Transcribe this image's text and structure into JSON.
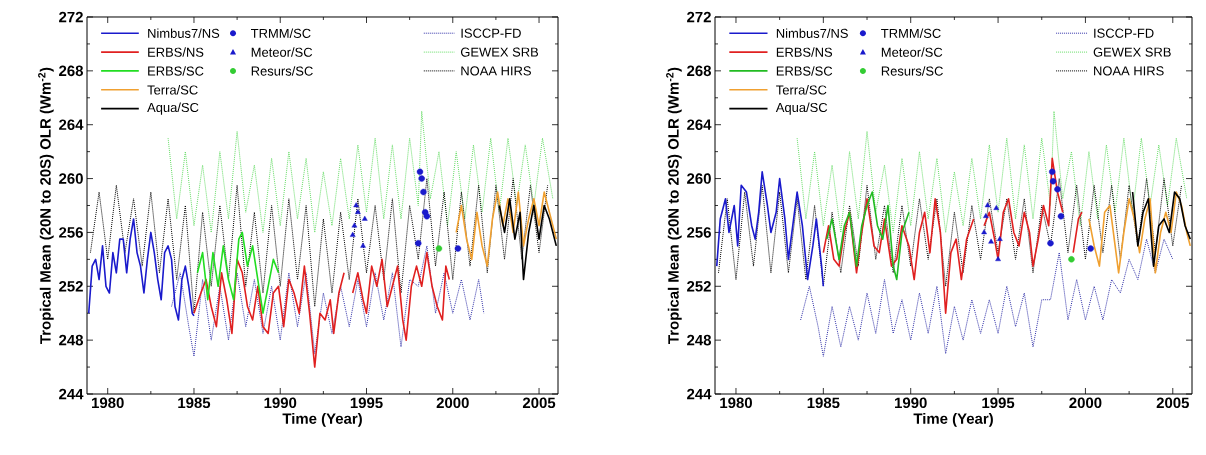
{
  "chart_data": [
    {
      "type": "line",
      "xlabel": "Time (Year)",
      "ylabel": "Tropical Mean (20N to 20S) OLR (Wm$^{-2}$)",
      "xlim": [
        1978.8,
        2006.1
      ],
      "ylim": [
        244,
        272
      ],
      "xticks": [
        1980,
        1985,
        1990,
        1995,
        2000,
        2005
      ],
      "yticks": [
        244,
        248,
        252,
        256,
        260,
        264,
        268,
        272
      ],
      "legend": "top",
      "series": [
        {
          "name": "Nimbus7/NS",
          "color": "#1a1acc",
          "line_style": "solid",
          "x": [
            1978.9,
            1979.1,
            1979.3,
            1979.5,
            1979.7,
            1979.9,
            1980.1,
            1980.3,
            1980.5,
            1980.7,
            1980.9,
            1981.1,
            1981.3,
            1981.5,
            1981.7,
            1981.9,
            1982.1,
            1982.3,
            1982.5,
            1982.7,
            1982.9,
            1983.1,
            1983.3,
            1983.5,
            1983.7,
            1983.9,
            1984.1,
            1984.3,
            1984.5,
            1984.7,
            1984.9,
            1985.0
          ],
          "values": [
            250.0,
            253.5,
            254.0,
            252.5,
            255.0,
            252.0,
            251.5,
            254.5,
            253.0,
            255.5,
            255.5,
            253.0,
            255.5,
            257.0,
            254.5,
            253.5,
            251.5,
            254.0,
            256.0,
            254.5,
            252.5,
            251.0,
            254.5,
            255.0,
            254.0,
            250.5,
            249.5,
            252.5,
            253.5,
            252.0,
            250.0,
            249.8
          ]
        },
        {
          "name": "ERBS/NS",
          "color": "#e02020",
          "line_style": "solid",
          "x": [
            1985.0,
            1985.4,
            1985.7,
            1986.0,
            1986.3,
            1986.6,
            1986.9,
            1987.2,
            1987.5,
            1987.8,
            1988.1,
            1988.4,
            1988.7,
            1989.0,
            1989.3,
            1989.6,
            1989.9,
            1990.2,
            1990.5,
            1990.8,
            1991.1,
            1991.4,
            1991.7,
            1992.0,
            1992.3,
            1992.6,
            1992.9,
            1993.1,
            1993.4,
            1993.7,
            1993.9,
            1994.2,
            1994.5,
            1994.8,
            1995.0,
            1995.3,
            1995.6,
            1995.9,
            1996.2,
            1996.5,
            1996.8,
            1997.1,
            1997.3,
            1997.6,
            1997.9,
            1998.2,
            1998.5,
            1998.8,
            1999.1,
            1999.4,
            1999.6,
            1999.8
          ],
          "values": [
            250.0,
            251.5,
            252.5,
            250.5,
            249.0,
            253.0,
            251.0,
            248.5,
            254.0,
            253.0,
            250.5,
            249.5,
            252.0,
            249.0,
            248.5,
            251.5,
            252.0,
            249.0,
            252.5,
            251.5,
            250.0,
            253.5,
            250.0,
            246.0,
            250.0,
            249.5,
            251.0,
            248.5,
            251.5,
            253.0,
            null,
            251.5,
            253.0,
            251.0,
            250.0,
            253.5,
            252.0,
            254.0,
            250.5,
            252.0,
            253.5,
            249.5,
            248.0,
            252.0,
            253.5,
            252.0,
            254.5,
            252.0,
            250.5,
            249.5,
            253.5,
            252.5
          ]
        },
        {
          "name": "ERBS/SC",
          "color": "#22dd22",
          "line_style": "solid",
          "x": [
            1985.2,
            1985.5,
            1985.8,
            1986.1,
            1986.4,
            1986.7,
            1987.0,
            1987.3,
            1987.6,
            1987.8,
            1988.1,
            1988.4,
            1988.7,
            1989.0,
            1989.3,
            1989.6,
            1989.9
          ],
          "values": [
            253.0,
            254.5,
            251.0,
            254.5,
            252.0,
            255.0,
            252.5,
            251.0,
            255.5,
            256.0,
            253.5,
            255.0,
            252.5,
            250.0,
            252.0,
            254.0,
            253.0
          ]
        },
        {
          "name": "Terra/SC",
          "color": "#f0a030",
          "line_style": "solid",
          "x": [
            2000.2,
            2000.5,
            2000.8,
            2001.1,
            2001.4,
            2001.7,
            2002.0,
            2002.3,
            2002.6,
            2002.9,
            2003.2,
            2003.5,
            2003.8,
            2004.1,
            2004.4,
            2004.7,
            2005.0,
            2005.3,
            2005.6,
            2005.9,
            2006.0
          ],
          "values": [
            256.0,
            258.0,
            255.5,
            254.0,
            257.5,
            255.0,
            253.5,
            257.0,
            259.0,
            256.5,
            258.5,
            256.0,
            259.0,
            255.0,
            257.0,
            258.5,
            256.5,
            259.0,
            257.5,
            256.0,
            255.5
          ]
        },
        {
          "name": "Aqua/SC",
          "color": "#000000",
          "line_style": "solid",
          "x": [
            2002.7,
            2003.0,
            2003.3,
            2003.6,
            2003.9,
            2004.1,
            2004.4,
            2004.7,
            2005.0,
            2005.3,
            2005.6,
            2005.9,
            2006.0
          ],
          "values": [
            258.0,
            256.0,
            258.5,
            255.5,
            257.5,
            252.5,
            256.0,
            258.0,
            255.5,
            258.0,
            257.0,
            255.5,
            255.0
          ]
        },
        {
          "name": "TRMM/SC",
          "type": "scatter",
          "marker": "circle",
          "color": "#1a1acc",
          "x": [
            1998.0,
            1998.1,
            1998.2,
            1998.3,
            1998.4,
            1998.5,
            2000.3
          ],
          "values": [
            255.2,
            260.5,
            260.0,
            259.0,
            257.5,
            257.2,
            254.8
          ]
        },
        {
          "name": "Meteor/SC",
          "type": "scatter",
          "marker": "triangle",
          "color": "#1a1acc",
          "x": [
            1994.2,
            1994.3,
            1994.4,
            1994.5,
            1994.8,
            1994.9
          ],
          "values": [
            255.8,
            256.5,
            258.0,
            257.5,
            255.0,
            257.0
          ]
        },
        {
          "name": "Resurs/SC",
          "type": "scatter",
          "marker": "circle",
          "color": "#33cc33",
          "x": [
            1999.2
          ],
          "values": [
            254.8
          ]
        },
        {
          "name": "ISCCP-FD",
          "color": "#3333aa",
          "line_style": "dotted",
          "x": [
            1983.7,
            1984.2,
            1984.7,
            1985.0,
            1985.5,
            1986.0,
            1986.5,
            1987.0,
            1987.5,
            1988.0,
            1988.5,
            1989.0,
            1989.5,
            1990.0,
            1990.5,
            1991.0,
            1991.5,
            1992.0,
            1992.5,
            1993.0,
            1993.5,
            1994.0,
            1994.5,
            1995.0,
            1995.5,
            1996.0,
            1996.5,
            1997.0,
            1997.5,
            1998.0,
            1998.5,
            1999.0,
            1999.5,
            2000.0,
            2000.5,
            2001.0,
            2001.5,
            2001.8
          ],
          "values": [
            250.5,
            253.0,
            249.0,
            246.8,
            252.5,
            248.0,
            252.0,
            248.0,
            253.0,
            249.0,
            252.5,
            248.5,
            252.0,
            248.0,
            253.0,
            249.0,
            253.0,
            247.0,
            251.5,
            248.5,
            252.0,
            249.0,
            252.5,
            249.0,
            253.0,
            249.5,
            253.0,
            247.5,
            252.5,
            252.0,
            255.0,
            250.0,
            253.0,
            250.0,
            252.5,
            249.5,
            252.5,
            250.0
          ]
        },
        {
          "name": "GEWEX SRB",
          "color": "#66dd66",
          "line_style": "dotted",
          "x": [
            1983.5,
            1984,
            1984.5,
            1985,
            1985.5,
            1986,
            1986.5,
            1987,
            1987.5,
            1988,
            1988.5,
            1989,
            1989.5,
            1990,
            1990.5,
            1991,
            1991.5,
            1992,
            1992.5,
            1993,
            1993.5,
            1994,
            1994.5,
            1995,
            1995.5,
            1996,
            1996.5,
            1997,
            1997.5,
            1998,
            1998.2,
            1998.7,
            1999.2,
            1999.7,
            2000.2,
            2000.7,
            2001.2,
            2001.7,
            2002.2,
            2002.7,
            2003.2,
            2003.7,
            2004.2,
            2004.7,
            2005.2,
            2005.8
          ],
          "values": [
            263.0,
            257.0,
            262.0,
            256.5,
            261.0,
            256.0,
            262.0,
            257.0,
            263.5,
            257.5,
            261.0,
            256.0,
            261.5,
            256.5,
            262.0,
            257.0,
            261.5,
            256.0,
            260.5,
            256.5,
            261.5,
            257.0,
            262.5,
            257.5,
            263.0,
            257.0,
            262.5,
            257.0,
            263.0,
            258.0,
            265.0,
            258.5,
            262.0,
            256.5,
            262.0,
            257.0,
            262.5,
            257.5,
            263.0,
            257.5,
            263.0,
            258.0,
            262.5,
            258.0,
            263.0,
            258.5
          ]
        },
        {
          "name": "NOAA HIRS",
          "color": "#000000",
          "line_style": "dotted",
          "x": [
            1979,
            1979.5,
            1980,
            1980.5,
            1981,
            1981.5,
            1982,
            1982.5,
            1983,
            1983.5,
            1984,
            1984.5,
            1985,
            1985.5,
            1986,
            1986.5,
            1987,
            1987.5,
            1988,
            1988.5,
            1989,
            1989.5,
            1990,
            1990.5,
            1991,
            1991.5,
            1992,
            1992.5,
            1993,
            1993.5,
            1994,
            1994.5,
            1995,
            1995.5,
            1996,
            1996.5,
            1997,
            1997.5,
            1998,
            1998.5,
            1999,
            1999.5,
            2000,
            2000.5,
            2001,
            2001.5,
            2002,
            2002.5,
            2003,
            2003.5,
            2004,
            2004.5,
            2005,
            2005.5
          ],
          "values": [
            254.5,
            259.0,
            254.0,
            259.5,
            254.5,
            258.5,
            253.5,
            259.0,
            253.0,
            258.5,
            252.5,
            258.0,
            250.0,
            257.5,
            252.0,
            258.0,
            252.5,
            259.5,
            252.0,
            257.5,
            251.5,
            258.0,
            252.0,
            258.5,
            252.5,
            258.0,
            250.5,
            257.0,
            251.5,
            257.5,
            252.5,
            258.5,
            253.0,
            258.0,
            252.5,
            258.5,
            251.5,
            258.0,
            254.0,
            260.0,
            253.5,
            259.0,
            252.5,
            259.0,
            253.5,
            259.5,
            253.0,
            259.5,
            254.0,
            260.0,
            254.0,
            259.5,
            254.5,
            259.5
          ]
        }
      ]
    },
    {
      "type": "line",
      "xlabel": "Time (Year)",
      "ylabel": "Tropical Mean (20N to 20S) OLR (Wm$^{-2}$)",
      "xlim": [
        1978.8,
        2006.1
      ],
      "ylim": [
        244,
        272
      ],
      "xticks": [
        1980,
        1985,
        1990,
        1995,
        2000,
        2005
      ],
      "yticks": [
        244,
        248,
        252,
        256,
        260,
        264,
        268,
        272
      ],
      "legend": "top",
      "series": [
        {
          "name": "Nimbus7/NS",
          "color": "#1a1acc",
          "line_style": "solid",
          "x": [
            1978.9,
            1979.1,
            1979.4,
            1979.6,
            1979.9,
            1980.1,
            1980.3,
            1980.6,
            1980.9,
            1981.1,
            1981.3,
            1981.5,
            1981.8,
            1982.0,
            1982.3,
            1982.5,
            1982.8,
            1983.0,
            1983.3,
            1983.5,
            1983.8,
            1984.1,
            1984.4,
            1984.6,
            1984.9,
            1985.0
          ],
          "values": [
            253.5,
            257.0,
            258.5,
            256.0,
            258.0,
            255.0,
            259.5,
            259.0,
            256.5,
            255.5,
            257.5,
            260.5,
            258.0,
            256.0,
            257.5,
            260.0,
            257.0,
            254.0,
            257.0,
            259.0,
            256.5,
            252.5,
            255.0,
            257.0,
            253.5,
            252.0
          ]
        },
        {
          "name": "ERBS/NS",
          "color": "#e02020",
          "line_style": "solid",
          "x": [
            1985.0,
            1985.3,
            1985.6,
            1985.9,
            1986.2,
            1986.5,
            1986.9,
            1987.2,
            1987.5,
            1987.9,
            1988.2,
            1988.5,
            1988.9,
            1989.2,
            1989.5,
            1989.9,
            1990.2,
            1990.5,
            1990.8,
            1991.1,
            1991.4,
            1991.7,
            1992.0,
            1992.3,
            1992.6,
            1992.9,
            1993.2,
            1993.6,
            1993.9,
            1994.2,
            1994.5,
            1994.8,
            1995.0,
            1995.3,
            1995.6,
            1995.9,
            1996.2,
            1996.5,
            1996.8,
            1997.0,
            1997.3,
            1997.6,
            1997.9,
            1998.1,
            1998.4,
            1998.7,
            1999.0,
            1999.3,
            1999.6,
            1999.8
          ],
          "values": [
            254.5,
            256.5,
            254.0,
            253.5,
            256.0,
            257.5,
            253.0,
            256.0,
            258.5,
            255.0,
            254.5,
            257.0,
            253.5,
            254.0,
            256.5,
            255.0,
            252.5,
            256.0,
            257.5,
            254.5,
            258.5,
            256.0,
            250.0,
            254.5,
            255.5,
            252.5,
            255.5,
            257.0,
            null,
            256.5,
            257.5,
            255.5,
            254.0,
            257.5,
            258.5,
            256.0,
            255.0,
            257.5,
            256.0,
            253.5,
            255.5,
            258.0,
            256.5,
            261.5,
            259.0,
            257.5,
            null,
            254.5,
            257.0,
            257.5
          ]
        },
        {
          "name": "ERBS/SC",
          "color": "#22bb22",
          "line_style": "solid",
          "x": [
            1985.2,
            1985.5,
            1985.9,
            1986.2,
            1986.5,
            1986.9,
            1987.2,
            1987.5,
            1987.8,
            1988.1,
            1988.4,
            1988.7,
            1989.0,
            1989.2,
            1989.5,
            1989.9
          ],
          "values": [
            255.5,
            257.0,
            254.0,
            256.5,
            257.5,
            253.5,
            256.5,
            258.0,
            259.0,
            256.5,
            255.5,
            258.0,
            253.5,
            252.5,
            256.0,
            257.5
          ]
        },
        {
          "name": "Terra/SC",
          "color": "#f0a030",
          "line_style": "solid",
          "x": [
            2000.2,
            2000.5,
            2000.8,
            2001.1,
            2001.4,
            2001.7,
            2001.9,
            2002.2,
            2002.5,
            2002.8,
            2003.1,
            2003.4,
            2003.7,
            2004.0,
            2004.3,
            2004.6,
            2004.9,
            2005.2,
            2005.5,
            2005.8,
            2006.0
          ],
          "values": [
            257.0,
            255.0,
            253.5,
            257.5,
            258.0,
            255.0,
            253.0,
            256.0,
            258.5,
            257.0,
            254.5,
            257.0,
            258.5,
            253.0,
            256.0,
            257.5,
            256.0,
            259.0,
            258.0,
            256.0,
            255.0
          ]
        },
        {
          "name": "Aqua/SC",
          "color": "#000000",
          "line_style": "solid",
          "x": [
            2002.7,
            2003.0,
            2003.3,
            2003.6,
            2003.9,
            2004.2,
            2004.5,
            2004.8,
            2005.1,
            2005.4,
            2005.7,
            2006.0
          ],
          "values": [
            259.0,
            255.0,
            257.5,
            258.5,
            253.5,
            256.5,
            257.0,
            256.0,
            259.0,
            258.5,
            256.5,
            255.5
          ]
        },
        {
          "name": "TRMM/SC",
          "type": "scatter",
          "marker": "circle",
          "color": "#1a1acc",
          "x": [
            1998.0,
            1998.1,
            1998.15,
            1998.4,
            1998.6,
            2000.3
          ],
          "values": [
            255.2,
            260.5,
            259.8,
            259.2,
            257.2,
            254.8
          ]
        },
        {
          "name": "Meteor/SC",
          "type": "scatter",
          "marker": "triangle",
          "color": "#1a1acc",
          "x": [
            1994.2,
            1994.3,
            1994.4,
            1994.6,
            1994.9,
            1995.0,
            1995.1
          ],
          "values": [
            256.0,
            257.2,
            258.0,
            255.3,
            257.8,
            254.0,
            255.5
          ]
        },
        {
          "name": "Resurs/SC",
          "type": "scatter",
          "marker": "circle",
          "color": "#33cc33",
          "x": [
            1999.2
          ],
          "values": [
            254.0
          ]
        },
        {
          "name": "ISCCP-FD",
          "color": "#3333aa",
          "line_style": "dotted",
          "x": [
            1983.7,
            1984.2,
            1984.7,
            1985.0,
            1985.5,
            1986.0,
            1986.5,
            1987.0,
            1987.5,
            1988.0,
            1988.5,
            1989.0,
            1989.5,
            1990.0,
            1990.5,
            1991.0,
            1991.5,
            1992.0,
            1992.5,
            1993.0,
            1993.5,
            1994.0,
            1994.5,
            1995.0,
            1995.5,
            1996.0,
            1996.5,
            1997.0,
            1997.5,
            1998.0,
            1998.5,
            1999.0,
            1999.5,
            2000.0,
            2000.5,
            2001.0,
            2001.5,
            2002.0,
            2002.5,
            2003.0,
            2003.5,
            2004.0,
            2004.5,
            2005.0
          ],
          "values": [
            249.5,
            252.0,
            249.0,
            246.8,
            250.5,
            247.5,
            250.5,
            248.0,
            251.5,
            248.5,
            252.5,
            248.5,
            251.0,
            248.0,
            251.5,
            248.5,
            252.0,
            247.0,
            250.5,
            248.0,
            251.0,
            248.5,
            251.0,
            248.5,
            252.0,
            249.0,
            251.5,
            247.5,
            251.0,
            251.0,
            254.5,
            249.5,
            252.5,
            249.5,
            252.0,
            249.5,
            252.5,
            251.5,
            254.0,
            252.5,
            255.5,
            253.0,
            255.5,
            254.0
          ]
        },
        {
          "name": "GEWEX SRB",
          "color": "#66dd66",
          "line_style": "dotted",
          "x": [
            1983.5,
            1984,
            1984.5,
            1985,
            1985.5,
            1986,
            1986.5,
            1987,
            1987.5,
            1988,
            1988.5,
            1989,
            1989.5,
            1990,
            1990.5,
            1991,
            1991.5,
            1992,
            1992.5,
            1993,
            1993.5,
            1994,
            1994.5,
            1995,
            1995.5,
            1996,
            1996.5,
            1997,
            1997.5,
            1998,
            1998.2,
            1998.7,
            1999.2,
            1999.7,
            2000.2,
            2000.7,
            2001.2,
            2001.7,
            2002.2,
            2002.7,
            2003.2,
            2003.7,
            2004.2,
            2004.7,
            2005.2,
            2005.8
          ],
          "values": [
            263.0,
            257.0,
            262.0,
            256.5,
            261.0,
            256.0,
            262.0,
            257.0,
            263.5,
            257.5,
            261.0,
            256.0,
            261.5,
            256.5,
            262.0,
            257.0,
            261.5,
            256.0,
            260.5,
            256.5,
            261.5,
            257.0,
            262.5,
            257.5,
            263.0,
            257.0,
            262.5,
            257.0,
            263.0,
            258.0,
            265.0,
            258.5,
            262.0,
            256.5,
            262.0,
            257.0,
            262.5,
            257.5,
            263.0,
            257.5,
            263.0,
            258.0,
            262.5,
            258.0,
            263.0,
            258.5
          ]
        },
        {
          "name": "NOAA HIRS",
          "color": "#000000",
          "line_style": "dotted",
          "x": [
            1979,
            1979.5,
            1980,
            1980.5,
            1981,
            1981.5,
            1982,
            1982.5,
            1983,
            1983.5,
            1984,
            1984.5,
            1985,
            1985.5,
            1986,
            1986.5,
            1987,
            1987.5,
            1988,
            1988.5,
            1989,
            1989.5,
            1990,
            1990.5,
            1991,
            1991.5,
            1992,
            1992.5,
            1993,
            1993.5,
            1994,
            1994.5,
            1995,
            1995.5,
            1996,
            1996.5,
            1997,
            1997.5,
            1998,
            1998.5,
            1999,
            1999.5,
            2000,
            2000.5,
            2001,
            2001.5,
            2002,
            2002.5,
            2003,
            2003.5,
            2004,
            2004.5,
            2005,
            2005.5
          ],
          "values": [
            253.0,
            258.5,
            252.5,
            259.0,
            253.5,
            259.5,
            253.0,
            259.0,
            253.0,
            258.5,
            252.5,
            258.0,
            252.0,
            257.5,
            253.0,
            258.0,
            253.5,
            259.5,
            254.0,
            258.0,
            253.0,
            258.0,
            253.5,
            258.5,
            254.0,
            258.5,
            252.0,
            257.5,
            253.0,
            258.0,
            254.0,
            258.5,
            254.5,
            258.5,
            254.0,
            258.5,
            253.0,
            258.0,
            255.0,
            260.0,
            254.5,
            259.5,
            254.0,
            259.5,
            254.5,
            259.5,
            254.0,
            259.5,
            255.0,
            260.0,
            254.5,
            260.0,
            255.0,
            259.5
          ]
        }
      ]
    }
  ]
}
